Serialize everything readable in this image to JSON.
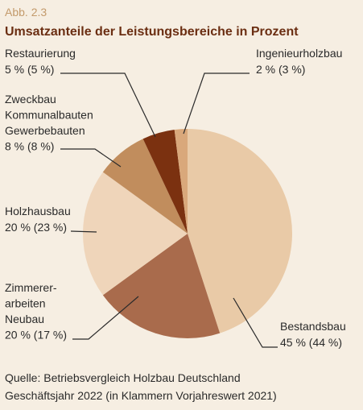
{
  "chart_data": {
    "type": "pie",
    "kicker": "Abb. 2.3",
    "title": "Umsatzanteile der Leistungsbereiche in Prozent",
    "categories": [
      "Bestandsbau",
      "Zimmerer-\narbeiten\nNeubau",
      "Holzhausbau",
      "Zweckbau\nKommunalbauten\nGewerbebauten",
      "Restaurierung",
      "Ingenieurholzbau"
    ],
    "values": [
      45,
      20,
      20,
      8,
      5,
      2
    ],
    "value_labels": [
      "45 % (44 %)",
      "20 % (17 %)",
      "20 % (23 %)",
      "8 % (8 %)",
      "5 % (5 %)",
      "2 % (3 %)"
    ],
    "colors": [
      "#e9caa7",
      "#a96b4c",
      "#efd5ba",
      "#c18d5d",
      "#7b3110",
      "#d9a87b"
    ],
    "source": [
      "Quelle: Betriebsvergleich Holzbau Deutschland",
      "Geschäftsjahr 2022 (in Klammern Vorjahreswert 2021)"
    ]
  }
}
